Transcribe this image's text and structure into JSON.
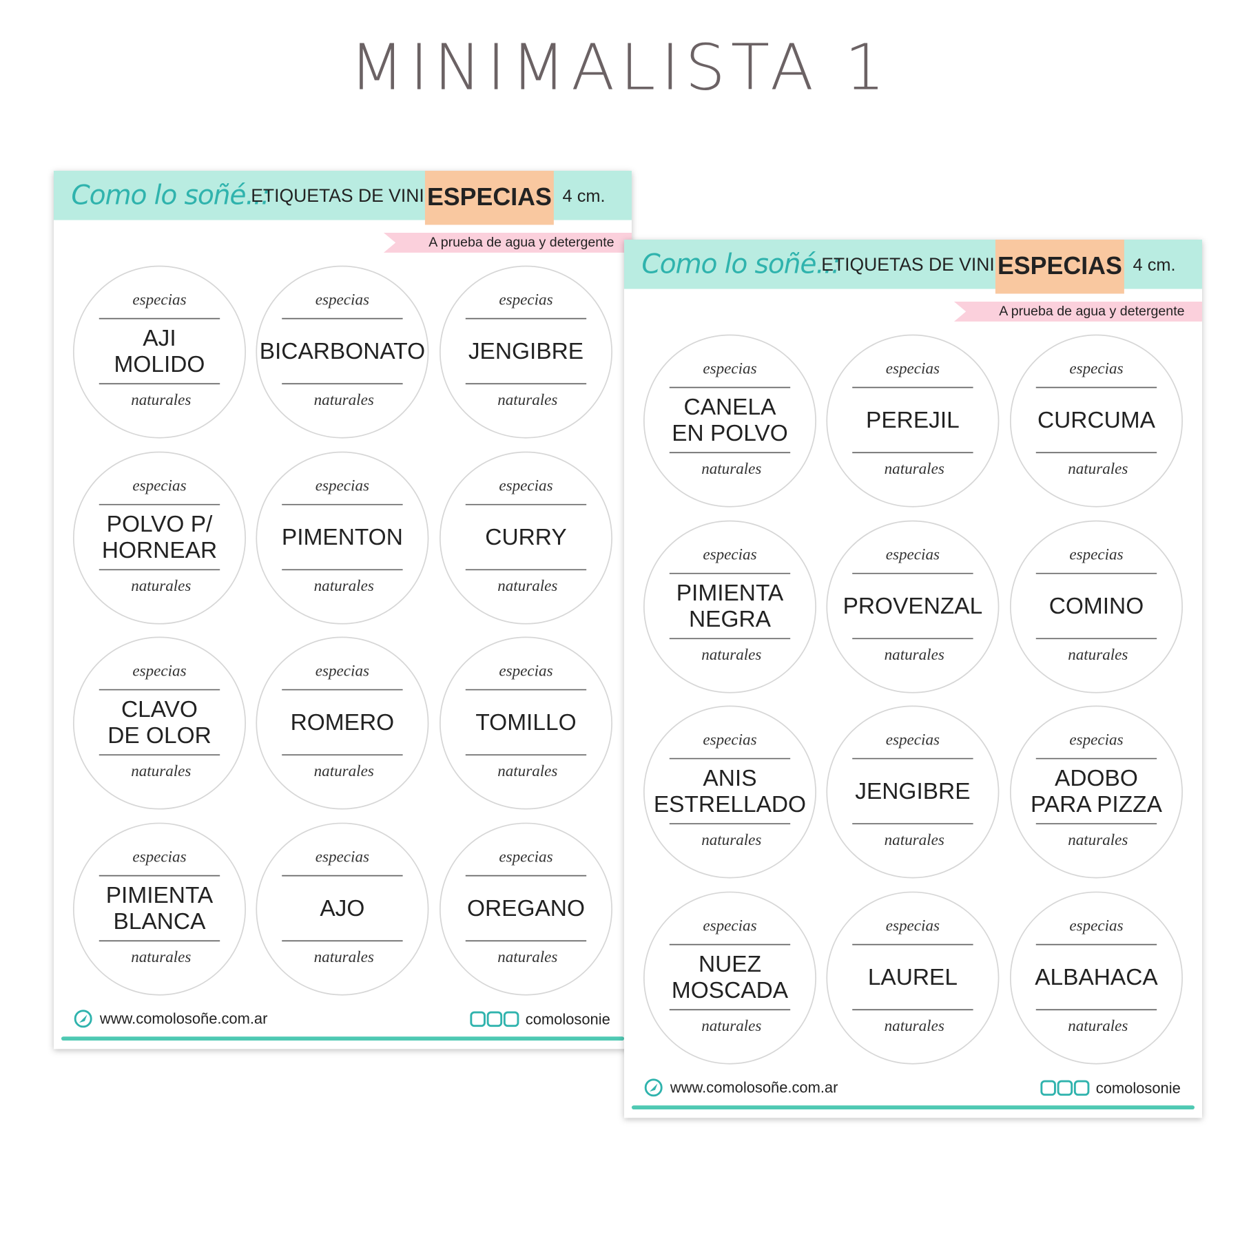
{
  "title": "MINIMALISTA 1",
  "sheets": [
    {
      "brand": "Como lo soñé..:",
      "heading": "ETIQUETAS DE VINILO",
      "category": "ESPECIAS",
      "size": "4 cm.",
      "tagline": "A prueba de agua y detergente",
      "label_top": "especias",
      "label_bottom": "naturales",
      "labels": [
        [
          "AJI",
          "MOLIDO"
        ],
        [
          "BICARBONATO"
        ],
        [
          "JENGIBRE"
        ],
        [
          "POLVO P/",
          "HORNEAR"
        ],
        [
          "PIMENTON"
        ],
        [
          "CURRY"
        ],
        [
          "CLAVO",
          "DE OLOR"
        ],
        [
          "ROMERO"
        ],
        [
          "TOMILLO"
        ],
        [
          "PIMIENTA",
          "BLANCA"
        ],
        [
          "AJO"
        ],
        [
          "OREGANO"
        ]
      ],
      "website": "www.comolosoñe.com.ar",
      "social": "comolosonie"
    },
    {
      "brand": "Como lo soñé..:",
      "heading": "ETIQUETAS DE VINILO",
      "category": "ESPECIAS",
      "size": "4 cm.",
      "tagline": "A prueba de agua y detergente",
      "label_top": "especias",
      "label_bottom": "naturales",
      "labels": [
        [
          "CANELA",
          "EN POLVO"
        ],
        [
          "PEREJIL"
        ],
        [
          "CURCUMA"
        ],
        [
          "PIMIENTA",
          "NEGRA"
        ],
        [
          "PROVENZAL"
        ],
        [
          "COMINO"
        ],
        [
          "ANIS",
          "ESTRELLADO"
        ],
        [
          "JENGIBRE"
        ],
        [
          "ADOBO",
          "PARA PIZZA"
        ],
        [
          "NUEZ",
          "MOSCADA"
        ],
        [
          "LAUREL"
        ],
        [
          "ALBAHACA"
        ]
      ],
      "website": "www.comolosoñe.com.ar",
      "social": "comolosonie"
    }
  ]
}
